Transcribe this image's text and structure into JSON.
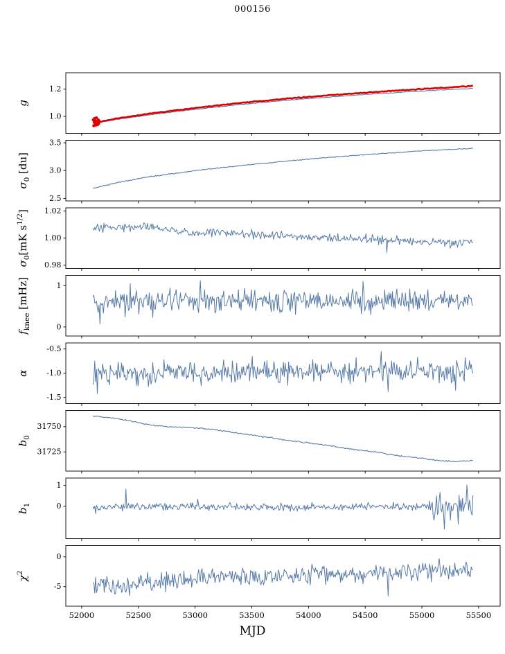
{
  "title": "000156",
  "xlabel": "MJD",
  "axis": {
    "xlim": [
      51860,
      55690
    ],
    "xticks": [
      52000,
      52500,
      53000,
      53500,
      54000,
      54500,
      55000,
      55500
    ],
    "xtick_labels": [
      "52000",
      "52500",
      "53000",
      "53500",
      "54000",
      "54500",
      "55000",
      "55500"
    ]
  },
  "chart_data": [
    {
      "type": "line",
      "id": "g",
      "ylabel_parts": [
        {
          "t": "g",
          "it": 1
        }
      ],
      "ylim": [
        0.876,
        1.32
      ],
      "yticks": [
        1.0,
        1.2
      ],
      "ytick_labels": [
        "1.0",
        "1.2"
      ],
      "series": [
        {
          "name": "g-smooth",
          "color": "#5579a7",
          "width": 1.1,
          "seed": 11,
          "n": 320,
          "sigma": 0.0012,
          "trend": [
            [
              52100,
              0.958
            ],
            [
              52130,
              0.946
            ],
            [
              52160,
              0.957
            ],
            [
              52300,
              0.977
            ],
            [
              52600,
              1.012
            ],
            [
              53000,
              1.052
            ],
            [
              53400,
              1.088
            ],
            [
              53800,
              1.118
            ],
            [
              54200,
              1.143
            ],
            [
              54600,
              1.166
            ],
            [
              55000,
              1.186
            ],
            [
              55250,
              1.197
            ],
            [
              55450,
              1.205
            ]
          ]
        },
        {
          "name": "g-red",
          "color": "#dd0000",
          "width": 2.6,
          "seed": 12,
          "n": 300,
          "sigma": 0.0015,
          "trend": [
            [
              52100,
              0.963
            ],
            [
              52130,
              0.95
            ],
            [
              52160,
              0.962
            ],
            [
              52300,
              0.984
            ],
            [
              52600,
              1.021
            ],
            [
              53000,
              1.062
            ],
            [
              53400,
              1.099
            ],
            [
              53800,
              1.13
            ],
            [
              54200,
              1.156
            ],
            [
              54600,
              1.18
            ],
            [
              55000,
              1.201
            ],
            [
              55250,
              1.213
            ],
            [
              55450,
              1.224
            ]
          ],
          "scatter": [
            [
              52102,
              0.975
            ],
            [
              52106,
              0.932
            ],
            [
              52110,
              0.958
            ],
            [
              52114,
              0.986
            ],
            [
              52118,
              0.944
            ],
            [
              52122,
              0.969
            ],
            [
              52126,
              0.936
            ],
            [
              52130,
              0.99
            ],
            [
              52134,
              0.953
            ],
            [
              52138,
              0.964
            ],
            [
              52142,
              0.94
            ],
            [
              52146,
              0.976
            ],
            [
              52150,
              0.948
            ],
            [
              52154,
              0.968
            ]
          ]
        }
      ]
    },
    {
      "type": "line",
      "id": "sigma0-du",
      "ylabel_parts": [
        {
          "t": "σ",
          "it": 1
        },
        {
          "t": "0",
          "sub": 1
        },
        {
          "t": " [du]"
        }
      ],
      "ylim": [
        2.455,
        3.545
      ],
      "yticks": [
        2.5,
        3.0,
        3.5
      ],
      "ytick_labels": [
        "2.5",
        "3.0",
        "3.5"
      ],
      "series": [
        {
          "name": "sigma0-du",
          "color": "#5579a7",
          "width": 1.1,
          "seed": 21,
          "n": 340,
          "sigma": 0.004,
          "trend": [
            [
              52100,
              2.68
            ],
            [
              52300,
              2.78
            ],
            [
              52600,
              2.89
            ],
            [
              53000,
              3.0
            ],
            [
              53400,
              3.09
            ],
            [
              53800,
              3.17
            ],
            [
              54200,
              3.24
            ],
            [
              54600,
              3.3
            ],
            [
              55000,
              3.355
            ],
            [
              55450,
              3.4
            ]
          ]
        }
      ]
    },
    {
      "type": "line",
      "id": "sigma0-mk",
      "ylabel_parts": [
        {
          "t": "σ",
          "it": 1
        },
        {
          "t": "0",
          "sub": 1
        },
        {
          "t": "[mK s"
        },
        {
          "t": "1/2",
          "sup": 1
        },
        {
          "t": "]"
        }
      ],
      "ylim": [
        0.9776,
        1.0224
      ],
      "yticks": [
        0.98,
        1.0,
        1.02
      ],
      "ytick_labels": [
        "0.98",
        "1.00",
        "1.02"
      ],
      "series": [
        {
          "name": "sigma0-mk",
          "color": "#5579a7",
          "width": 1,
          "seed": 31,
          "n": 420,
          "sigma": 0.0016,
          "trend": [
            [
              52100,
              1.0065
            ],
            [
              52350,
              1.0085
            ],
            [
              52600,
              1.009
            ],
            [
              52800,
              1.006
            ],
            [
              53000,
              1.0035
            ],
            [
              53200,
              1.0045
            ],
            [
              53500,
              1.002
            ],
            [
              53800,
              1.0015
            ],
            [
              54100,
              1.0005
            ],
            [
              54400,
              0.9995
            ],
            [
              54700,
              0.9985
            ],
            [
              55000,
              0.997
            ],
            [
              55200,
              0.9965
            ],
            [
              55450,
              0.997
            ]
          ],
          "spikes": [
            [
              54690,
              0.9895
            ]
          ]
        }
      ]
    },
    {
      "type": "line",
      "id": "fknee",
      "ylabel_parts": [
        {
          "t": "f",
          "it": 1
        },
        {
          "t": "knee",
          "sub": 1
        },
        {
          "t": " [mHz]"
        }
      ],
      "ylim": [
        -0.22,
        1.25
      ],
      "yticks": [
        0,
        1
      ],
      "ytick_labels": [
        "0",
        "1"
      ],
      "series": [
        {
          "name": "fknee",
          "color": "#5579a7",
          "width": 1,
          "seed": 41,
          "n": 440,
          "sigma": 0.14,
          "trend": [
            [
              52100,
              0.6
            ],
            [
              53000,
              0.63
            ],
            [
              54000,
              0.62
            ],
            [
              55450,
              0.64
            ]
          ],
          "spikes": [
            [
              52160,
              0.07
            ],
            [
              52430,
              1.05
            ],
            [
              53050,
              1.12
            ],
            [
              54480,
              1.1
            ]
          ]
        }
      ]
    },
    {
      "type": "line",
      "id": "alpha",
      "ylabel_parts": [
        {
          "t": "α",
          "it": 1
        }
      ],
      "ylim": [
        -1.625,
        -0.375
      ],
      "yticks": [
        -1.5,
        -1.0,
        -0.5
      ],
      "ytick_labels": [
        "-1.5",
        "-1.0",
        "-0.5"
      ],
      "series": [
        {
          "name": "alpha",
          "color": "#5579a7",
          "width": 1,
          "seed": 51,
          "n": 440,
          "sigma": 0.115,
          "trend": [
            [
              52100,
              -0.98
            ],
            [
              53200,
              -0.99
            ],
            [
              54300,
              -0.96
            ],
            [
              55450,
              -0.95
            ]
          ],
          "spikes": [
            [
              52140,
              -1.42
            ],
            [
              54640,
              -0.55
            ],
            [
              54700,
              -1.38
            ],
            [
              55300,
              -1.35
            ]
          ]
        }
      ]
    },
    {
      "type": "line",
      "id": "b0",
      "ylabel_parts": [
        {
          "t": "b",
          "it": 1
        },
        {
          "t": "0",
          "sub": 1
        }
      ],
      "ylim": [
        31706,
        31766
      ],
      "yticks": [
        31725,
        31750
      ],
      "ytick_labels": [
        "31725",
        "31750"
      ],
      "series": [
        {
          "name": "b0",
          "color": "#5579a7",
          "width": 1.1,
          "seed": 61,
          "n": 330,
          "sigma": 0.35,
          "trend": [
            [
              52100,
              31760.5
            ],
            [
              52350,
              31757.5
            ],
            [
              52550,
              31752.5
            ],
            [
              52750,
              31750
            ],
            [
              52950,
              31749
            ],
            [
              53150,
              31747.5
            ],
            [
              53350,
              31744
            ],
            [
              53600,
              31740
            ],
            [
              53850,
              31736
            ],
            [
              54100,
              31732.5
            ],
            [
              54300,
              31729
            ],
            [
              54550,
              31725.5
            ],
            [
              54800,
              31721
            ],
            [
              55000,
              31718.5
            ],
            [
              55150,
              31716.5
            ],
            [
              55300,
              31715.5
            ],
            [
              55450,
              31716.5
            ]
          ]
        }
      ]
    },
    {
      "type": "line",
      "id": "b1",
      "ylabel_parts": [
        {
          "t": "b",
          "it": 1
        },
        {
          "t": "1",
          "sub": 1
        }
      ],
      "ylim": [
        -1.55,
        1.35
      ],
      "yticks": [
        0,
        1
      ],
      "ytick_labels": [
        "0",
        "1"
      ],
      "series": [
        {
          "name": "b1",
          "color": "#5579a7",
          "width": 1,
          "seed": 71,
          "n": 440,
          "sigma": 0.085,
          "trend": [
            [
              52100,
              -0.05
            ],
            [
              53000,
              -0.02
            ],
            [
              54000,
              -0.03
            ],
            [
              55450,
              0.0
            ]
          ],
          "sigma_zones": [
            {
              "from": 55060,
              "sigma": 0.33
            }
          ],
          "spikes": [
            [
              52120,
              -0.35
            ],
            [
              52390,
              0.82
            ],
            [
              53020,
              0.35
            ],
            [
              55200,
              -1.1
            ],
            [
              55320,
              -0.85
            ],
            [
              55400,
              1.02
            ]
          ]
        }
      ]
    },
    {
      "type": "line",
      "id": "chi2",
      "ylabel_parts": [
        {
          "t": "χ",
          "it": 1
        },
        {
          "t": "2",
          "sup": 1
        }
      ],
      "ylim": [
        -8.3,
        1.9
      ],
      "yticks": [
        -5,
        0
      ],
      "ytick_labels": [
        "-5",
        "0"
      ],
      "series": [
        {
          "name": "chi2",
          "color": "#5579a7",
          "width": 1,
          "seed": 81,
          "n": 440,
          "sigma": 0.75,
          "trend": [
            [
              52100,
              -4.4
            ],
            [
              52350,
              -4.9
            ],
            [
              52600,
              -4.4
            ],
            [
              52900,
              -3.8
            ],
            [
              53200,
              -3.4
            ],
            [
              53600,
              -3.2
            ],
            [
              54000,
              -3.1
            ],
            [
              54400,
              -3.0
            ],
            [
              54800,
              -2.6
            ],
            [
              55100,
              -2.2
            ],
            [
              55450,
              -2.4
            ]
          ],
          "spikes": [
            [
              52300,
              -6.2
            ],
            [
              54700,
              -6.6
            ],
            [
              55150,
              -0.3
            ]
          ]
        }
      ]
    }
  ]
}
